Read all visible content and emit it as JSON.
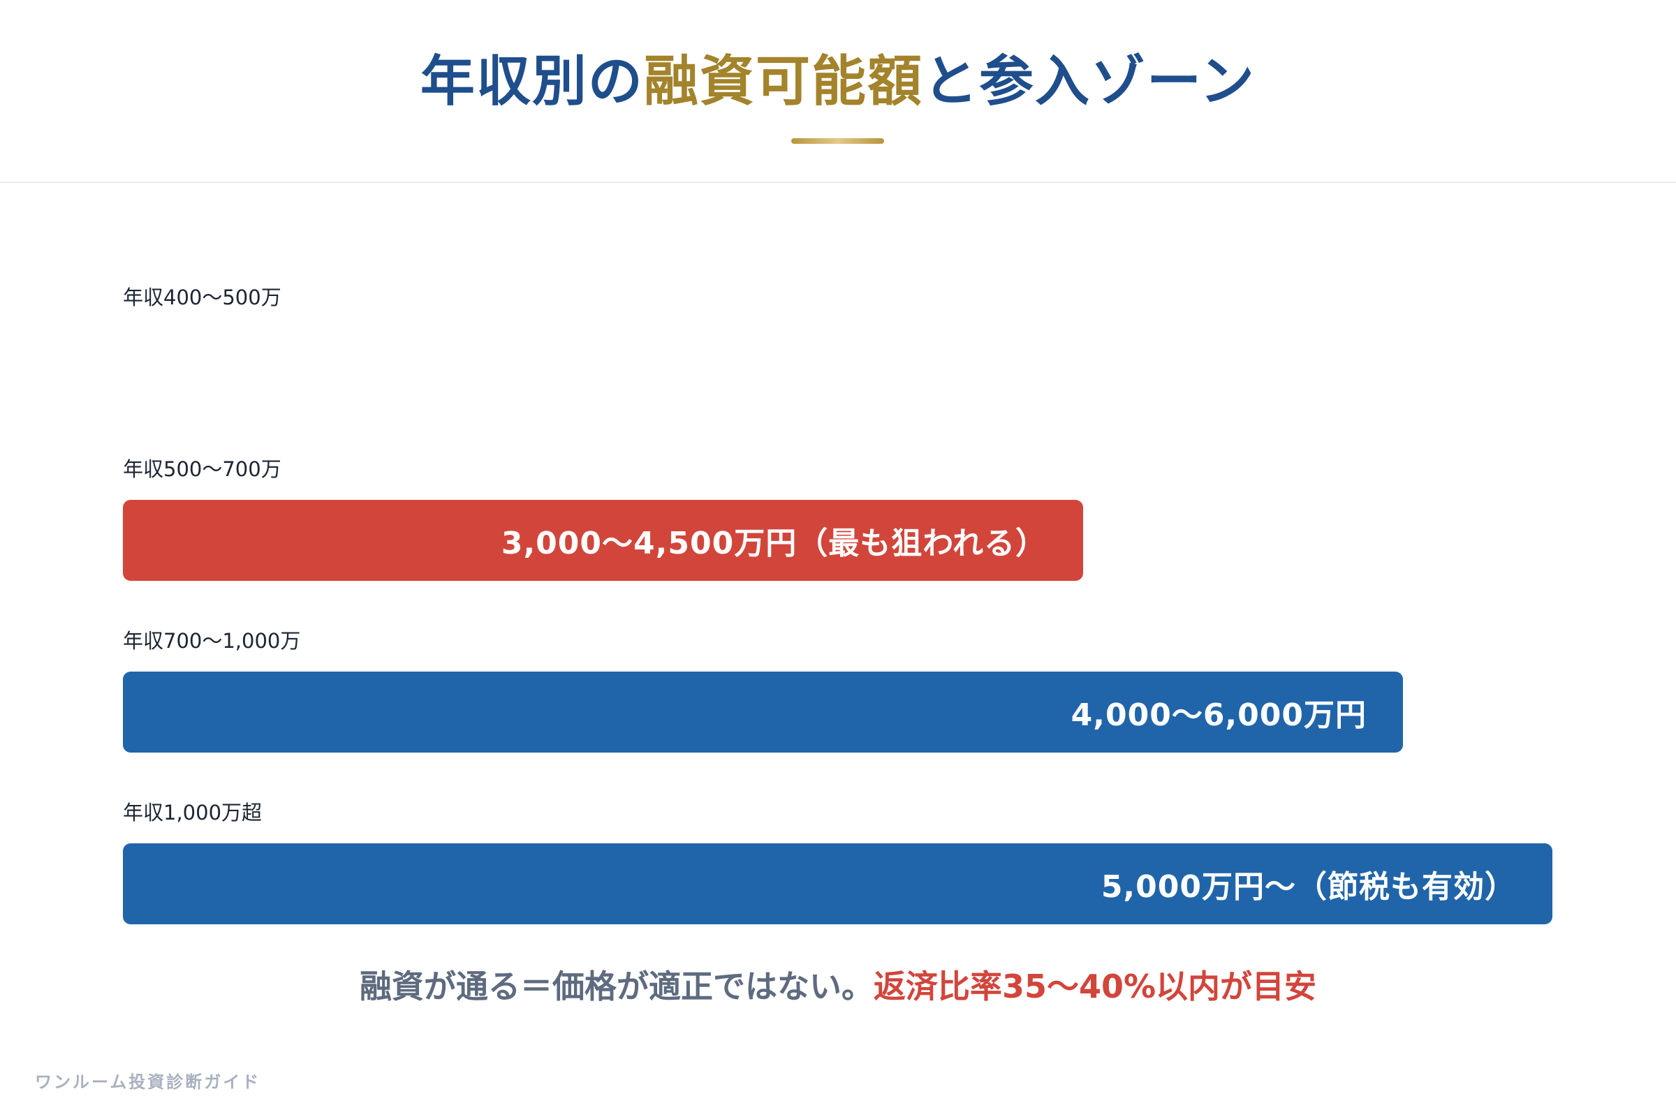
{
  "title": {
    "part1": "年収別の",
    "part2": "融資可能額",
    "part3": "と参入ゾーン",
    "color_primary": "#1f4e8c",
    "color_accent": "#a3832b"
  },
  "chart_data": {
    "type": "bar",
    "orientation": "horizontal",
    "categories": [
      "年収400〜500万",
      "年収500〜700万",
      "年収700〜1,000万",
      "年収1,000万超"
    ],
    "values": [
      null,
      4500,
      6000,
      6700
    ],
    "bar_labels": [
      "",
      "3,000〜4,500万円（最も狙われる）",
      "4,000〜6,000万円",
      "5,000万円〜（節税も有効）"
    ],
    "colors": [
      "#2065aa",
      "#d2453b",
      "#2065aa",
      "#2065aa"
    ],
    "xlim": [
      0,
      6700
    ],
    "value_unit": "万円"
  },
  "note": {
    "text": "融資が通る＝価格が適正ではない。",
    "highlight": "返済比率35〜40%以内が目安",
    "color_text": "#5e6b7f",
    "color_highlight": "#d2453b"
  },
  "footer": {
    "text": "ワンルーム投資診断ガイド"
  }
}
